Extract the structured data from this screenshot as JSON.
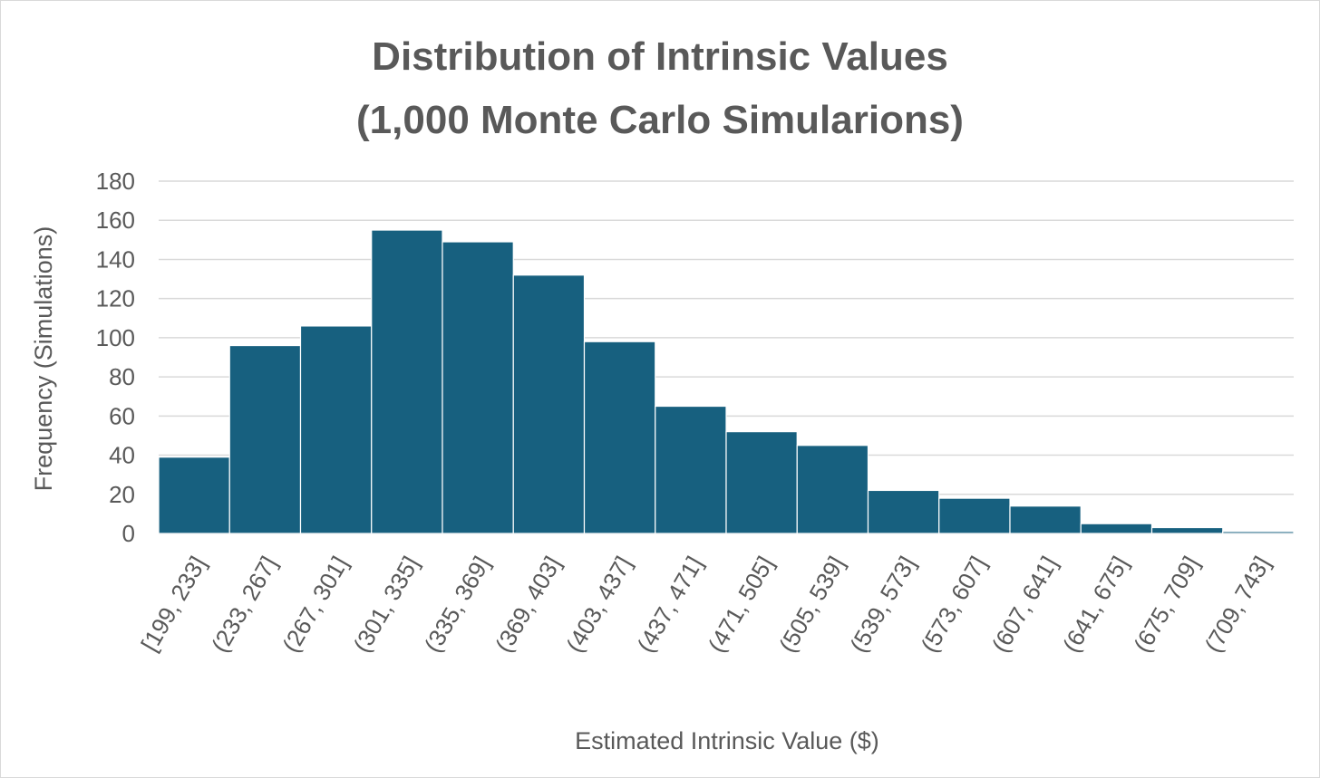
{
  "chart_data": {
    "type": "bar",
    "title": [
      "Distribution of Intrinsic Values",
      "(1,000 Monte Carlo Simularions)"
    ],
    "xlabel": "Estimated Intrinsic Value ($)",
    "ylabel": "Frequency (Simulations)",
    "categories": [
      "[199, 233]",
      "(233, 267]",
      "(267, 301]",
      "(301, 335]",
      "(335, 369]",
      "(369, 403]",
      "(403, 437]",
      "(437, 471]",
      "(471, 505]",
      "(505, 539]",
      "(539, 573]",
      "(573, 607]",
      "(607, 641]",
      "(641, 675]",
      "(675, 709]",
      "(709, 743]"
    ],
    "values": [
      39,
      96,
      106,
      155,
      149,
      132,
      98,
      65,
      52,
      45,
      22,
      18,
      14,
      5,
      3,
      1
    ],
    "ylim": [
      0,
      180
    ],
    "yticks": [
      "0",
      "20",
      "40",
      "60",
      "80",
      "100",
      "120",
      "140",
      "160",
      "180"
    ],
    "grid": true,
    "legend": "none",
    "bar_color": "#17607f",
    "grid_color": "#d9d9d9",
    "text_color": "#595959"
  }
}
